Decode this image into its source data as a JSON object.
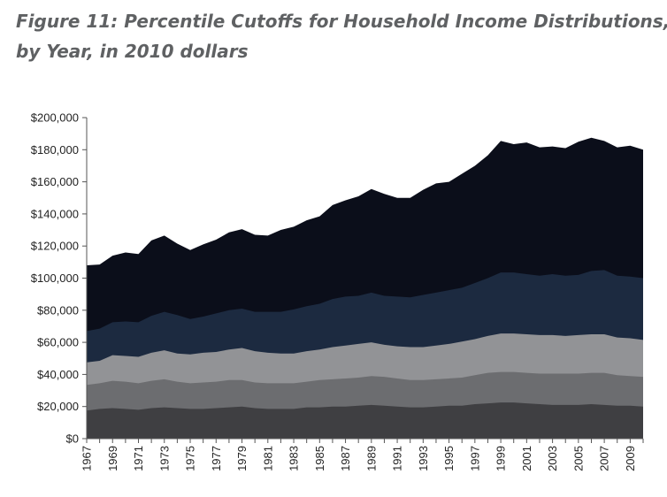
{
  "title_line1": "Figure 11: Percentile Cutoffs for Household Income Distributions,",
  "title_line2": "by Year, in 2010 dollars",
  "chart_data": {
    "type": "area",
    "stacked": false,
    "title": "Figure 11: Percentile Cutoffs for Household Income Distributions, by Year, in 2010 dollars",
    "xlabel": "",
    "ylabel": "",
    "ylim": [
      0,
      200000
    ],
    "yticks": [
      0,
      20000,
      40000,
      60000,
      80000,
      100000,
      120000,
      140000,
      160000,
      180000,
      200000
    ],
    "ytick_labels": [
      "$0",
      "$20,000",
      "$40,000",
      "$60,000",
      "$80,000",
      "$100,000",
      "$120,000",
      "$140,000",
      "$160,000",
      "$180,000",
      "$200,000"
    ],
    "x": [
      1967,
      1968,
      1969,
      1970,
      1971,
      1972,
      1973,
      1974,
      1975,
      1976,
      1977,
      1978,
      1979,
      1980,
      1981,
      1982,
      1983,
      1984,
      1985,
      1986,
      1987,
      1988,
      1989,
      1990,
      1991,
      1992,
      1993,
      1994,
      1995,
      1996,
      1997,
      1998,
      1999,
      2000,
      2001,
      2002,
      2003,
      2004,
      2005,
      2006,
      2007,
      2008,
      2009,
      2010
    ],
    "xtick_labels": [
      "1967",
      "1969",
      "1971",
      "1973",
      "1975",
      "1977",
      "1979",
      "1981",
      "1983",
      "1985",
      "1987",
      "1989",
      "1991",
      "1993",
      "1995",
      "1997",
      "1999",
      "2001",
      "2003",
      "2005",
      "2007",
      "2009"
    ],
    "grid": false,
    "series": [
      {
        "color": "#0b0e1a",
        "values": [
          108000,
          108500,
          114000,
          116000,
          115000,
          123500,
          126500,
          121500,
          117500,
          121000,
          124000,
          128500,
          130500,
          127000,
          126500,
          130000,
          132000,
          136000,
          138500,
          145500,
          148500,
          151000,
          155500,
          152500,
          150000,
          150000,
          155000,
          159000,
          160000,
          165000,
          170000,
          176500,
          185500,
          183500,
          184500,
          181500,
          182000,
          181000,
          185000,
          187500,
          185500,
          181500,
          182500,
          180000
        ]
      },
      {
        "color": "#1c2a40",
        "values": [
          67000,
          68500,
          72500,
          73000,
          72500,
          76500,
          79000,
          77000,
          74500,
          76000,
          78000,
          80000,
          81000,
          79000,
          79000,
          79000,
          80500,
          82500,
          84000,
          87000,
          88500,
          89000,
          91000,
          89000,
          88500,
          88000,
          89500,
          91000,
          92500,
          94000,
          97000,
          100000,
          103500,
          103500,
          102500,
          101500,
          102500,
          101500,
          102000,
          104500,
          105000,
          101500,
          101000,
          100000
        ]
      },
      {
        "color": "#929396",
        "values": [
          47500,
          48500,
          52000,
          51500,
          51000,
          53500,
          55000,
          53000,
          52500,
          53500,
          54000,
          55500,
          56500,
          54500,
          53500,
          53000,
          53000,
          54500,
          55500,
          57000,
          58000,
          59000,
          60000,
          58500,
          57500,
          57000,
          57000,
          58000,
          59000,
          60500,
          62000,
          64000,
          65500,
          65500,
          65000,
          64500,
          64500,
          64000,
          64500,
          65000,
          65000,
          63000,
          62500,
          61500
        ]
      },
      {
        "color": "#6c6d70",
        "values": [
          33500,
          34500,
          36000,
          35500,
          34500,
          36000,
          37000,
          35500,
          34500,
          35000,
          35500,
          36500,
          36500,
          35000,
          34500,
          34500,
          34500,
          35500,
          36500,
          37000,
          37500,
          38000,
          39000,
          38500,
          37500,
          36500,
          36500,
          37000,
          37500,
          38000,
          39500,
          41000,
          41500,
          41500,
          41000,
          40500,
          40500,
          40500,
          40500,
          41000,
          41000,
          39500,
          39000,
          38500
        ]
      },
      {
        "color": "#3f3f42",
        "values": [
          17500,
          18500,
          19000,
          18500,
          18000,
          19000,
          19500,
          19000,
          18500,
          18500,
          19000,
          19500,
          20000,
          19000,
          18500,
          18500,
          18500,
          19500,
          19500,
          20000,
          20000,
          20500,
          21000,
          20500,
          20000,
          19500,
          19500,
          20000,
          20500,
          20500,
          21500,
          22000,
          22500,
          22500,
          22000,
          21500,
          21000,
          21000,
          21000,
          21500,
          21000,
          20500,
          20500,
          20000
        ]
      }
    ]
  }
}
